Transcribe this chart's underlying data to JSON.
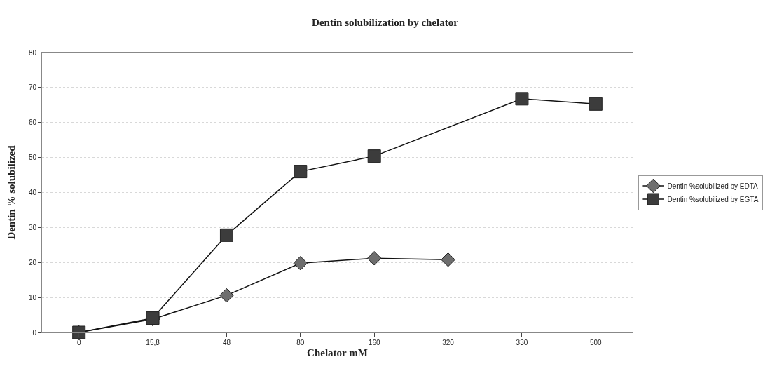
{
  "chart_data": {
    "type": "line",
    "title": "Dentin solubilization by chelator",
    "xlabel": "Chelator mM",
    "ylabel": "Dentin % solubilized",
    "categories": [
      "0",
      "15,8",
      "48",
      "80",
      "160",
      "320",
      "330",
      "500"
    ],
    "series": [
      {
        "name": "Dentin %solubilized by EDTA",
        "color": "#6e6e6e",
        "marker": "diamond",
        "values": [
          0,
          3.8,
          10.6,
          19.8,
          21.2,
          20.8,
          null,
          null
        ]
      },
      {
        "name": "Dentin %solubilized by EGTA",
        "color": "#3c3c3c",
        "marker": "square",
        "values": [
          0,
          4.1,
          27.8,
          46,
          50.4,
          null,
          66.8,
          65.3
        ]
      }
    ],
    "ylim": [
      0,
      80
    ],
    "yticks": [
      0,
      10,
      20,
      30,
      40,
      50,
      60,
      70,
      80
    ],
    "grid": "y",
    "legend": "right"
  }
}
